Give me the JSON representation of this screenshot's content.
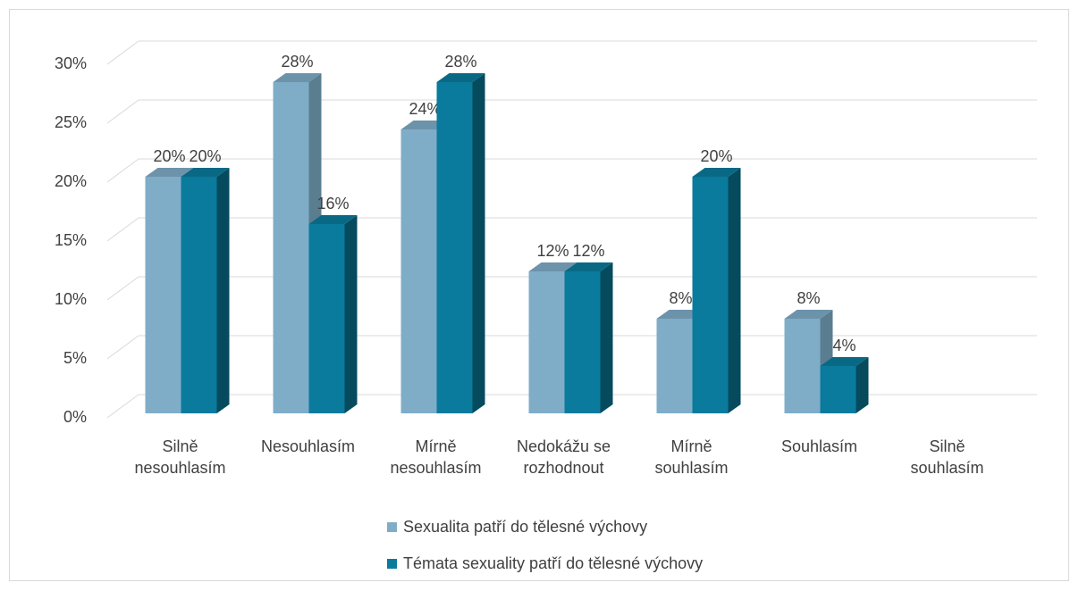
{
  "chart_data": {
    "type": "bar3d",
    "categories": [
      "Silně nesouhlasím",
      "Nesouhlasím",
      "Mírně nesouhlasím",
      "Nedokážu se rozhodnout",
      "Mírně souhlasím",
      "Souhlasím",
      "Silně souhlasím"
    ],
    "series": [
      {
        "name": "Sexualita patří do tělesné výchovy",
        "color": "#7fadc8",
        "values": [
          20,
          28,
          24,
          12,
          8,
          8,
          null
        ],
        "value_labels": [
          "20%",
          "28%",
          "24%",
          "12%",
          "8%",
          "8%",
          null
        ]
      },
      {
        "name": "Témata sexuality patří do tělesné výchovy",
        "color": "#0a7b9c",
        "values": [
          20,
          16,
          28,
          12,
          20,
          4,
          null
        ],
        "value_labels": [
          "20%",
          "16%",
          "28%",
          "12%",
          "20%",
          "4%",
          null
        ]
      }
    ],
    "ylim": [
      0,
      30
    ],
    "yticks": [
      {
        "value": 0,
        "label": "0%"
      },
      {
        "value": 5,
        "label": "5%"
      },
      {
        "value": 10,
        "label": "10%"
      },
      {
        "value": 15,
        "label": "15%"
      },
      {
        "value": 20,
        "label": "20%"
      },
      {
        "value": 25,
        "label": "25%"
      },
      {
        "value": 30,
        "label": "30%"
      }
    ],
    "grid": true,
    "legend": "bottom"
  }
}
